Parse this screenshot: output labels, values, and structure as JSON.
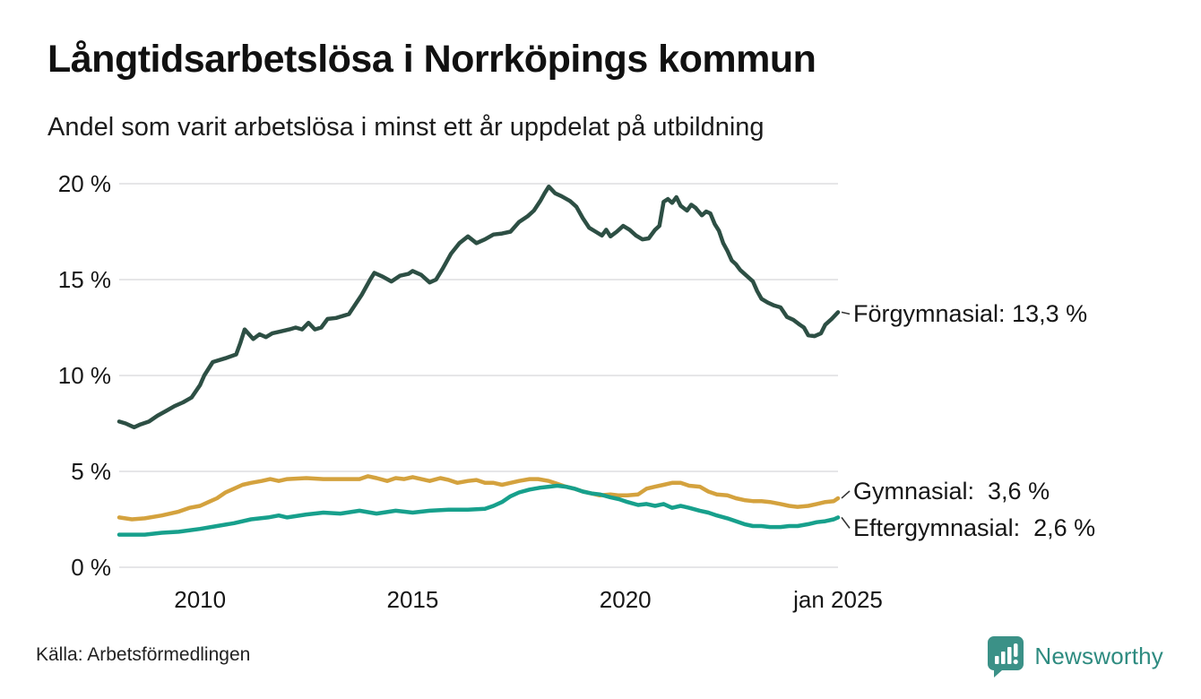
{
  "header": {
    "title": "Långtidsarbetslösa i Norrköpings kommun",
    "subtitle": "Andel som varit arbetslösa i minst ett år uppdelat på utbildning"
  },
  "footer": {
    "source": "Källa: Arbetsförmedlingen",
    "brand": "Newsworthy",
    "brand_color": "#3b9187"
  },
  "chart_data": {
    "type": "line",
    "title": "Långtidsarbetslösa i Norrköpings kommun",
    "subtitle": "Andel som varit arbetslösa i minst ett år uppdelat på utbildning",
    "xlabel": "",
    "ylabel": "",
    "unit": "%",
    "grid": "horizontal",
    "gridline_color": "#e6e6e8",
    "legend": "end-of-line labels",
    "ylim": [
      0,
      20
    ],
    "xaxis": {
      "min": 2008.1,
      "max": 2025.0,
      "ticks": [
        {
          "label": "2010",
          "year": 2010.0
        },
        {
          "label": "2015",
          "year": 2015.0
        },
        {
          "label": "2020",
          "year": 2020.0
        },
        {
          "label": "jan 2025",
          "year": 2025.0
        }
      ]
    },
    "yaxis": {
      "ticks": [
        {
          "label": "0 %",
          "value": 0
        },
        {
          "label": "5 %",
          "value": 5
        },
        {
          "label": "10 %",
          "value": 10
        },
        {
          "label": "15 %",
          "value": 15
        },
        {
          "label": "20 %",
          "value": 20
        }
      ]
    },
    "annotations": [
      {
        "label": "Förgymnasial: 13,3 %",
        "series": "Förgymnasial",
        "last_value": "13,3 %"
      },
      {
        "label": "Gymnasial:  3,6 %",
        "series": "Gymnasial",
        "last_value": "3,6 %"
      },
      {
        "label": "Eftergymnasial:  2,6 %",
        "series": "Eftergymnasial",
        "last_value": "2,6 %"
      }
    ],
    "series": [
      {
        "name": "Förgymnasial",
        "color": "#2d4f44",
        "points": [
          [
            2008.1,
            7.6
          ],
          [
            2008.25,
            7.5
          ],
          [
            2008.45,
            7.3
          ],
          [
            2008.6,
            7.45
          ],
          [
            2008.8,
            7.6
          ],
          [
            2009.0,
            7.9
          ],
          [
            2009.2,
            8.15
          ],
          [
            2009.4,
            8.4
          ],
          [
            2009.6,
            8.6
          ],
          [
            2009.8,
            8.85
          ],
          [
            2010.0,
            9.5
          ],
          [
            2010.1,
            10.0
          ],
          [
            2010.3,
            10.7
          ],
          [
            2010.6,
            10.9
          ],
          [
            2010.85,
            11.1
          ],
          [
            2010.95,
            11.7
          ],
          [
            2011.05,
            12.4
          ],
          [
            2011.25,
            11.9
          ],
          [
            2011.4,
            12.15
          ],
          [
            2011.55,
            12.0
          ],
          [
            2011.7,
            12.2
          ],
          [
            2011.9,
            12.3
          ],
          [
            2012.1,
            12.4
          ],
          [
            2012.25,
            12.5
          ],
          [
            2012.4,
            12.4
          ],
          [
            2012.55,
            12.75
          ],
          [
            2012.7,
            12.4
          ],
          [
            2012.85,
            12.5
          ],
          [
            2013.0,
            12.95
          ],
          [
            2013.2,
            13.0
          ],
          [
            2013.5,
            13.2
          ],
          [
            2013.8,
            14.2
          ],
          [
            2014.0,
            15.0
          ],
          [
            2014.1,
            15.35
          ],
          [
            2014.3,
            15.15
          ],
          [
            2014.5,
            14.9
          ],
          [
            2014.7,
            15.2
          ],
          [
            2014.9,
            15.3
          ],
          [
            2015.0,
            15.45
          ],
          [
            2015.2,
            15.25
          ],
          [
            2015.4,
            14.85
          ],
          [
            2015.55,
            15.0
          ],
          [
            2015.7,
            15.55
          ],
          [
            2015.9,
            16.35
          ],
          [
            2016.1,
            16.9
          ],
          [
            2016.3,
            17.25
          ],
          [
            2016.5,
            16.9
          ],
          [
            2016.7,
            17.1
          ],
          [
            2016.9,
            17.35
          ],
          [
            2017.1,
            17.4
          ],
          [
            2017.3,
            17.5
          ],
          [
            2017.5,
            18.0
          ],
          [
            2017.7,
            18.3
          ],
          [
            2017.85,
            18.6
          ],
          [
            2018.0,
            19.1
          ],
          [
            2018.1,
            19.5
          ],
          [
            2018.2,
            19.85
          ],
          [
            2018.35,
            19.5
          ],
          [
            2018.5,
            19.35
          ],
          [
            2018.7,
            19.1
          ],
          [
            2018.85,
            18.8
          ],
          [
            2019.0,
            18.2
          ],
          [
            2019.15,
            17.7
          ],
          [
            2019.3,
            17.5
          ],
          [
            2019.45,
            17.3
          ],
          [
            2019.55,
            17.6
          ],
          [
            2019.65,
            17.25
          ],
          [
            2019.8,
            17.5
          ],
          [
            2019.95,
            17.8
          ],
          [
            2020.1,
            17.6
          ],
          [
            2020.25,
            17.3
          ],
          [
            2020.4,
            17.1
          ],
          [
            2020.55,
            17.15
          ],
          [
            2020.7,
            17.6
          ],
          [
            2020.8,
            17.8
          ],
          [
            2020.9,
            19.05
          ],
          [
            2021.0,
            19.2
          ],
          [
            2021.1,
            19.0
          ],
          [
            2021.2,
            19.3
          ],
          [
            2021.3,
            18.85
          ],
          [
            2021.45,
            18.6
          ],
          [
            2021.55,
            18.9
          ],
          [
            2021.65,
            18.75
          ],
          [
            2021.8,
            18.35
          ],
          [
            2021.9,
            18.55
          ],
          [
            2022.0,
            18.45
          ],
          [
            2022.1,
            17.9
          ],
          [
            2022.2,
            17.55
          ],
          [
            2022.3,
            16.9
          ],
          [
            2022.4,
            16.5
          ],
          [
            2022.5,
            16.0
          ],
          [
            2022.6,
            15.8
          ],
          [
            2022.7,
            15.5
          ],
          [
            2022.85,
            15.2
          ],
          [
            2023.0,
            14.9
          ],
          [
            2023.1,
            14.4
          ],
          [
            2023.2,
            14.0
          ],
          [
            2023.35,
            13.8
          ],
          [
            2023.5,
            13.65
          ],
          [
            2023.65,
            13.55
          ],
          [
            2023.8,
            13.05
          ],
          [
            2023.95,
            12.9
          ],
          [
            2024.1,
            12.65
          ],
          [
            2024.2,
            12.5
          ],
          [
            2024.3,
            12.1
          ],
          [
            2024.45,
            12.05
          ],
          [
            2024.6,
            12.2
          ],
          [
            2024.7,
            12.65
          ],
          [
            2024.85,
            12.95
          ],
          [
            2025.0,
            13.3
          ]
        ]
      },
      {
        "name": "Gymnasial",
        "color": "#d4a23e",
        "points": [
          [
            2008.1,
            2.6
          ],
          [
            2008.4,
            2.5
          ],
          [
            2008.7,
            2.55
          ],
          [
            2009.1,
            2.7
          ],
          [
            2009.5,
            2.9
          ],
          [
            2009.75,
            3.1
          ],
          [
            2010.0,
            3.2
          ],
          [
            2010.2,
            3.4
          ],
          [
            2010.4,
            3.6
          ],
          [
            2010.6,
            3.9
          ],
          [
            2010.8,
            4.1
          ],
          [
            2011.0,
            4.3
          ],
          [
            2011.2,
            4.4
          ],
          [
            2011.45,
            4.5
          ],
          [
            2011.65,
            4.6
          ],
          [
            2011.85,
            4.5
          ],
          [
            2012.05,
            4.6
          ],
          [
            2012.5,
            4.65
          ],
          [
            2012.9,
            4.6
          ],
          [
            2013.3,
            4.6
          ],
          [
            2013.75,
            4.6
          ],
          [
            2013.95,
            4.75
          ],
          [
            2014.15,
            4.65
          ],
          [
            2014.4,
            4.5
          ],
          [
            2014.6,
            4.65
          ],
          [
            2014.8,
            4.6
          ],
          [
            2015.0,
            4.7
          ],
          [
            2015.2,
            4.6
          ],
          [
            2015.4,
            4.5
          ],
          [
            2015.65,
            4.65
          ],
          [
            2015.85,
            4.55
          ],
          [
            2016.05,
            4.4
          ],
          [
            2016.3,
            4.5
          ],
          [
            2016.5,
            4.55
          ],
          [
            2016.7,
            4.4
          ],
          [
            2016.9,
            4.4
          ],
          [
            2017.1,
            4.3
          ],
          [
            2017.3,
            4.4
          ],
          [
            2017.5,
            4.5
          ],
          [
            2017.75,
            4.6
          ],
          [
            2017.95,
            4.6
          ],
          [
            2018.2,
            4.5
          ],
          [
            2018.4,
            4.35
          ],
          [
            2018.6,
            4.2
          ],
          [
            2018.8,
            4.1
          ],
          [
            2019.0,
            3.95
          ],
          [
            2019.2,
            3.85
          ],
          [
            2019.4,
            3.75
          ],
          [
            2019.65,
            3.8
          ],
          [
            2019.85,
            3.75
          ],
          [
            2020.05,
            3.75
          ],
          [
            2020.3,
            3.8
          ],
          [
            2020.5,
            4.1
          ],
          [
            2020.7,
            4.2
          ],
          [
            2020.9,
            4.3
          ],
          [
            2021.1,
            4.4
          ],
          [
            2021.3,
            4.4
          ],
          [
            2021.5,
            4.25
          ],
          [
            2021.75,
            4.2
          ],
          [
            2021.95,
            3.95
          ],
          [
            2022.15,
            3.8
          ],
          [
            2022.4,
            3.75
          ],
          [
            2022.6,
            3.6
          ],
          [
            2022.8,
            3.5
          ],
          [
            2023.0,
            3.45
          ],
          [
            2023.2,
            3.45
          ],
          [
            2023.4,
            3.4
          ],
          [
            2023.65,
            3.3
          ],
          [
            2023.85,
            3.2
          ],
          [
            2024.05,
            3.15
          ],
          [
            2024.3,
            3.2
          ],
          [
            2024.5,
            3.3
          ],
          [
            2024.7,
            3.4
          ],
          [
            2024.9,
            3.45
          ],
          [
            2025.0,
            3.6
          ]
        ]
      },
      {
        "name": "Eftergymnasial",
        "color": "#17a08c",
        "points": [
          [
            2008.1,
            1.7
          ],
          [
            2008.7,
            1.7
          ],
          [
            2009.1,
            1.8
          ],
          [
            2009.5,
            1.85
          ],
          [
            2010.0,
            2.0
          ],
          [
            2010.4,
            2.15
          ],
          [
            2010.8,
            2.3
          ],
          [
            2011.2,
            2.5
          ],
          [
            2011.6,
            2.6
          ],
          [
            2011.85,
            2.7
          ],
          [
            2012.05,
            2.6
          ],
          [
            2012.5,
            2.75
          ],
          [
            2012.9,
            2.85
          ],
          [
            2013.3,
            2.8
          ],
          [
            2013.75,
            2.95
          ],
          [
            2014.15,
            2.8
          ],
          [
            2014.6,
            2.95
          ],
          [
            2015.0,
            2.85
          ],
          [
            2015.4,
            2.95
          ],
          [
            2015.85,
            3.0
          ],
          [
            2016.3,
            3.0
          ],
          [
            2016.7,
            3.05
          ],
          [
            2016.9,
            3.2
          ],
          [
            2017.1,
            3.4
          ],
          [
            2017.3,
            3.7
          ],
          [
            2017.5,
            3.9
          ],
          [
            2017.75,
            4.05
          ],
          [
            2018.0,
            4.15
          ],
          [
            2018.2,
            4.2
          ],
          [
            2018.4,
            4.25
          ],
          [
            2018.6,
            4.2
          ],
          [
            2018.8,
            4.1
          ],
          [
            2019.0,
            3.95
          ],
          [
            2019.2,
            3.85
          ],
          [
            2019.4,
            3.8
          ],
          [
            2019.65,
            3.65
          ],
          [
            2019.85,
            3.55
          ],
          [
            2020.05,
            3.4
          ],
          [
            2020.3,
            3.25
          ],
          [
            2020.5,
            3.3
          ],
          [
            2020.7,
            3.2
          ],
          [
            2020.9,
            3.3
          ],
          [
            2021.1,
            3.1
          ],
          [
            2021.3,
            3.2
          ],
          [
            2021.5,
            3.1
          ],
          [
            2021.75,
            2.95
          ],
          [
            2021.95,
            2.85
          ],
          [
            2022.15,
            2.7
          ],
          [
            2022.4,
            2.55
          ],
          [
            2022.6,
            2.4
          ],
          [
            2022.8,
            2.25
          ],
          [
            2023.0,
            2.15
          ],
          [
            2023.2,
            2.15
          ],
          [
            2023.4,
            2.1
          ],
          [
            2023.65,
            2.1
          ],
          [
            2023.85,
            2.15
          ],
          [
            2024.05,
            2.15
          ],
          [
            2024.3,
            2.25
          ],
          [
            2024.5,
            2.35
          ],
          [
            2024.7,
            2.4
          ],
          [
            2024.9,
            2.5
          ],
          [
            2025.0,
            2.6
          ]
        ]
      }
    ]
  }
}
